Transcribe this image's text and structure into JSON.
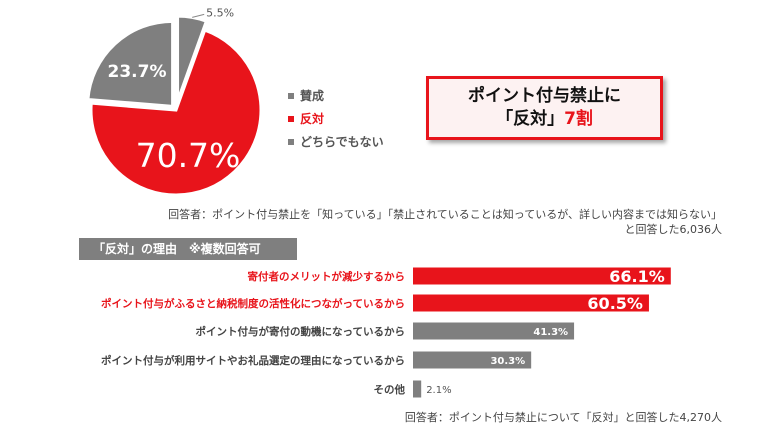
{
  "chart_data": [
    {
      "type": "pie",
      "labels": [
        "賛成",
        "反対",
        "どちらでもない"
      ],
      "values": [
        5.5,
        70.7,
        23.7
      ],
      "value_labels": [
        "5.5%",
        "70.7%",
        "23.7%"
      ],
      "colors": [
        "#7f7f7f",
        "#e8141b",
        "#7f7f7f"
      ]
    },
    {
      "type": "bar",
      "orientation": "horizontal",
      "title": "「反対」の理由　※複数回答可",
      "categories": [
        "寄付者のメリットが減少するから",
        "ポイント付与がふるさと納税制度の活性化につながっているから",
        "ポイント付与が寄付の動機になっているから",
        "ポイント付与が利用サイトやお礼品選定の理由になっているから",
        "その他"
      ],
      "values": [
        66.1,
        60.5,
        41.3,
        30.3,
        2.1
      ],
      "value_labels": [
        "66.1%",
        "60.5%",
        "41.3%",
        "30.3%",
        "2.1%"
      ],
      "highlight": [
        true,
        true,
        false,
        false,
        false
      ],
      "xlim": [
        0,
        100
      ]
    }
  ],
  "legend": {
    "items": [
      {
        "label": "賛成",
        "color": "#7f7f7f"
      },
      {
        "label": "反対",
        "color": "#e8141b"
      },
      {
        "label": "どちらでもない",
        "color": "#7f7f7f"
      }
    ]
  },
  "headline": {
    "line1": "ポイント付与禁止に",
    "line2_a": "「反対」",
    "line2_b": "7割"
  },
  "note1": {
    "line1": "回答者：ポイント付与禁止を「知っている」「禁止されていることは知っているが、詳しい内容までは知らない」",
    "line2": "と回答した6,036人"
  },
  "section_title": "「反対」の理由　※複数回答可",
  "note2": "回答者：ポイント付与禁止について「反対」と回答した4,270人",
  "colors": {
    "accent": "#e8141b",
    "neutral": "#7f7f7f"
  }
}
